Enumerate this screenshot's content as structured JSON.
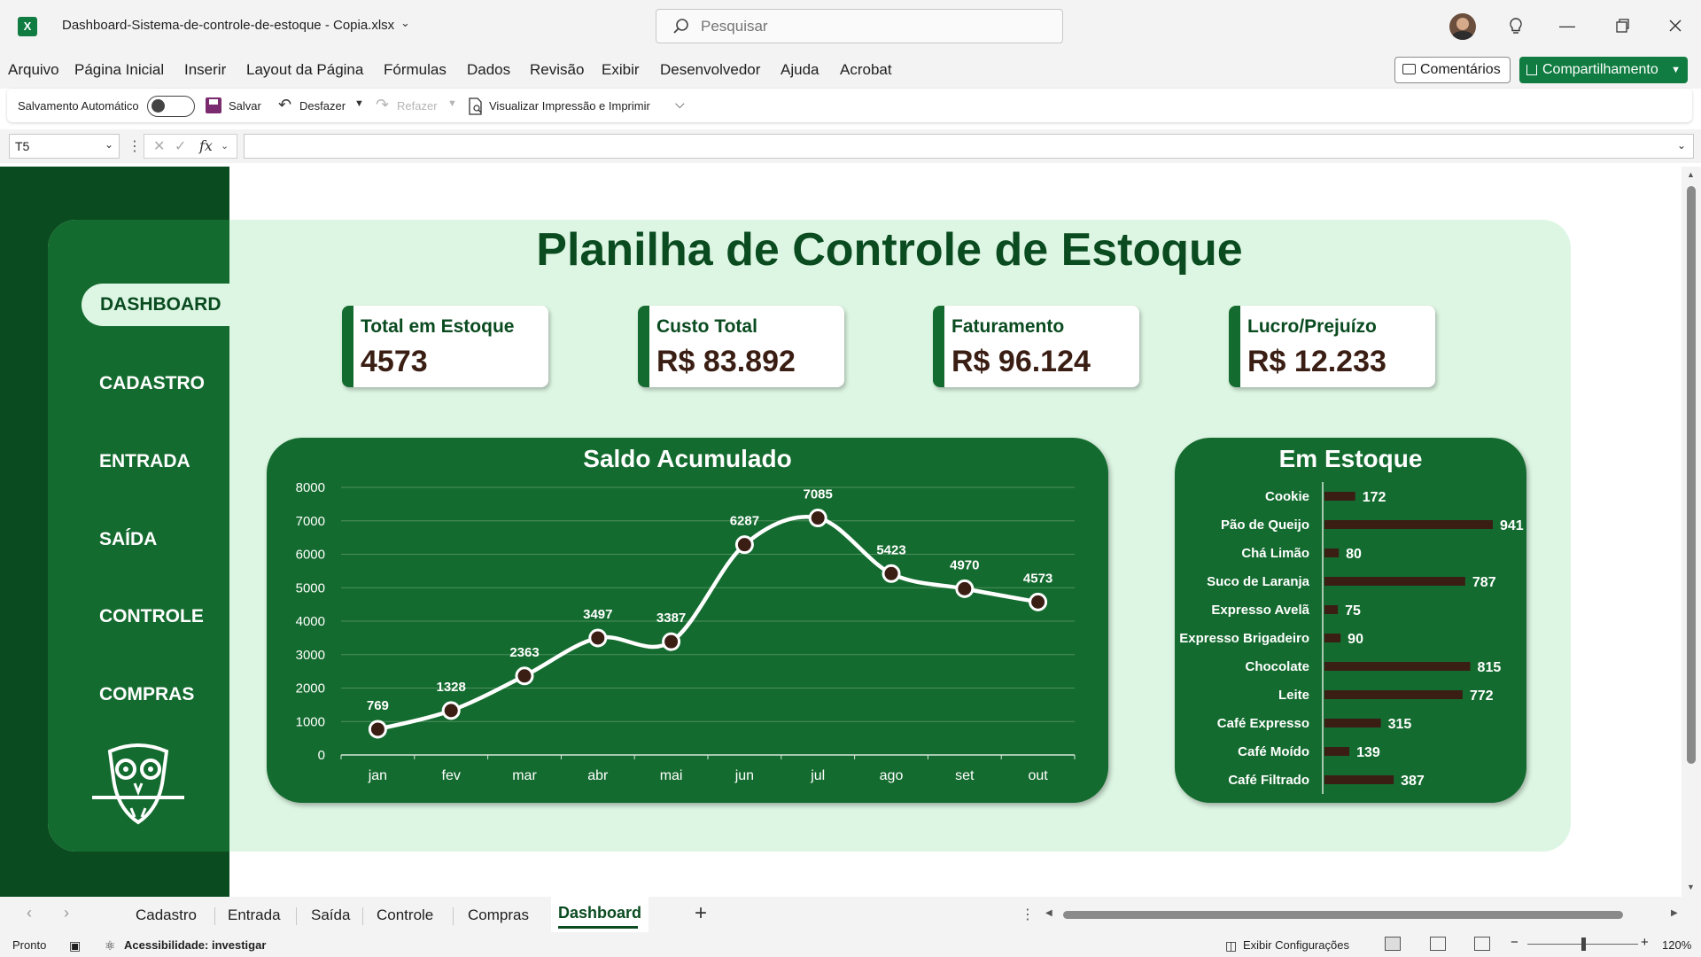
{
  "app": {
    "file_title": "Dashboard-Sistema-de-controle-de-estoque - Copia.xlsx",
    "search_placeholder": "Pesquisar"
  },
  "menu": {
    "items": [
      "Arquivo",
      "Página Inicial",
      "Inserir",
      "Layout da Página",
      "Fórmulas",
      "Dados",
      "Revisão",
      "Exibir",
      "Desenvolvedor",
      "Ajuda",
      "Acrobat"
    ],
    "comments_label": "Comentários",
    "share_label": "Compartilhamento"
  },
  "qat": {
    "autosave_label": "Salvamento Automático",
    "save_label": "Salvar",
    "undo_label": "Desfazer",
    "redo_label": "Refazer",
    "print_label": "Visualizar Impressão e Imprimir"
  },
  "formula_bar": {
    "name_box": "T5",
    "fx_label": "fx",
    "formula_value": ""
  },
  "dashboard": {
    "title": "Planilha de Controle de Estoque",
    "nav": [
      "DASHBOARD",
      "CADASTRO",
      "ENTRADA",
      "SAÍDA",
      "CONTROLE",
      "COMPRAS"
    ],
    "nav_active": "DASHBOARD",
    "kpis": [
      {
        "label": "Total em Estoque",
        "value": "4573"
      },
      {
        "label": "Custo Total",
        "value": "R$ 83.892"
      },
      {
        "label": "Faturamento",
        "value": "R$ 96.124"
      },
      {
        "label": "Lucro/Prejuízo",
        "value": "R$ 12.233"
      }
    ],
    "colors": {
      "dark_green": "#0a4b20",
      "card_green": "#146b2f",
      "light_green_bg": "#ddf6e3",
      "bar_brown": "#3a1e14",
      "kpi_value": "#3a1e14"
    }
  },
  "chart_data": [
    {
      "type": "line",
      "title": "Saldo Acumulado",
      "categories": [
        "jan",
        "fev",
        "mar",
        "abr",
        "mai",
        "jun",
        "jul",
        "ago",
        "set",
        "out"
      ],
      "values": [
        769,
        1328,
        2363,
        3497,
        3387,
        6287,
        7085,
        5423,
        4970,
        4573
      ],
      "ylim": [
        0,
        8000
      ],
      "yticks": [
        0,
        1000,
        2000,
        3000,
        4000,
        5000,
        6000,
        7000,
        8000
      ],
      "grid": true,
      "data_labels": true
    },
    {
      "type": "bar",
      "orientation": "horizontal",
      "title": "Em Estoque",
      "categories": [
        "Cookie",
        "Pão de Queijo",
        "Chá Limão",
        "Suco de Laranja",
        "Expresso Avelã",
        "Expresso Brigadeiro",
        "Chocolate",
        "Leite",
        "Café Expresso",
        "Café Moído",
        "Café Filtrado"
      ],
      "values": [
        172,
        941,
        80,
        787,
        75,
        90,
        815,
        772,
        315,
        139,
        387
      ],
      "data_labels": true
    }
  ],
  "sheet_tabs": {
    "tabs": [
      "Cadastro",
      "Entrada",
      "Saída",
      "Controle",
      "Compras",
      "Dashboard"
    ],
    "active": "Dashboard",
    "add_label": "+"
  },
  "status": {
    "ready": "Pronto",
    "accessibility": "Acessibilidade: investigar",
    "display_settings": "Exibir Configurações",
    "zoom": "120%"
  },
  "icons": [
    "excel-logo",
    "search-icon",
    "lightbulb-icon",
    "minimize-icon",
    "restore-icon",
    "close-icon",
    "comment-icon",
    "share-icon",
    "save-icon",
    "undo-icon",
    "redo-icon",
    "print-preview-icon",
    "owl-icon"
  ]
}
